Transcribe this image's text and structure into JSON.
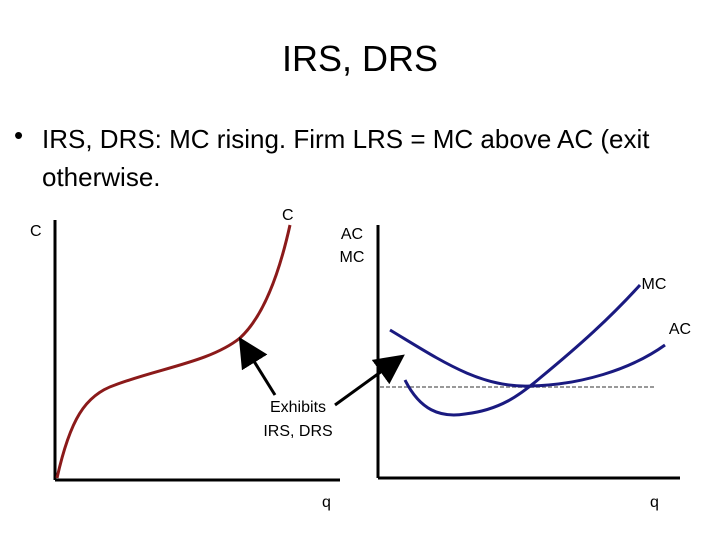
{
  "title": "IRS, DRS",
  "bullets": [
    "IRS, DRS: MC rising. Firm LRS = MC above AC (exit otherwise."
  ],
  "left_graph": {
    "y_axis_label": "C",
    "curve_label": "C",
    "x_axis_label": "q"
  },
  "annotation": {
    "lines": [
      "Exhibits",
      "IRS, DRS"
    ]
  },
  "right_graph": {
    "y_axis_label_lines": [
      "AC",
      "MC"
    ],
    "curve_labels": [
      "MC",
      "AC"
    ],
    "x_axis_label": "q"
  }
}
